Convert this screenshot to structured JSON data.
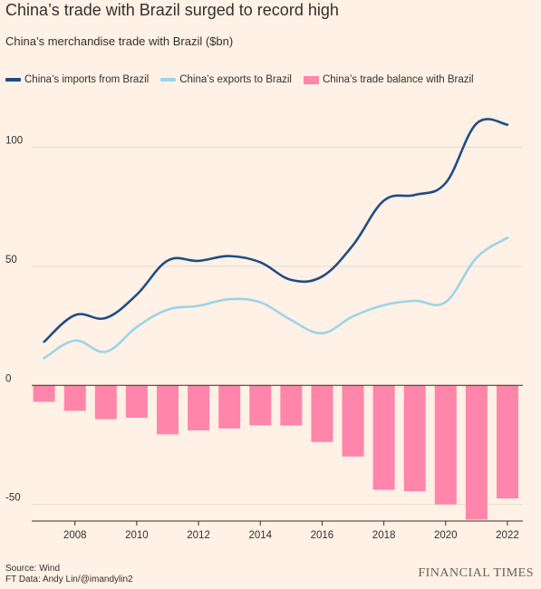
{
  "title": "China’s trade with Brazil surged to record high",
  "subtitle": "China’s merchandise trade with Brazil ($bn)",
  "legend": {
    "imports": "China’s imports from Brazil",
    "exports": "China’s exports to Brazil",
    "balance": "China’s trade balance with Brazil"
  },
  "colors": {
    "background": "#FFF1E5",
    "imports": "#1F4D85",
    "exports": "#9CD4E8",
    "balance": "#FF85AA",
    "grid": "#E6D9CE",
    "axis": "#33302E"
  },
  "footer": {
    "source": "Source: Wind",
    "credit": "FT Data: Andy Lin/@imandylin2"
  },
  "brand": "FINANCIAL TIMES",
  "chart_data": {
    "type": "line+bar",
    "x": [
      2007,
      2008,
      2009,
      2010,
      2011,
      2012,
      2013,
      2014,
      2015,
      2016,
      2017,
      2018,
      2019,
      2020,
      2021,
      2022
    ],
    "series": [
      {
        "name": "China’s imports from Brazil",
        "type": "line",
        "values": [
          18.3,
          29.5,
          28.3,
          38.1,
          52.4,
          52.3,
          54.3,
          51.7,
          44.3,
          45.7,
          58.9,
          77.6,
          80.0,
          85.0,
          110.0,
          109.5
        ]
      },
      {
        "name": "China’s exports to Brazil",
        "type": "line",
        "values": [
          11.4,
          18.8,
          14.1,
          24.5,
          31.8,
          33.4,
          36.2,
          34.9,
          27.4,
          21.9,
          29.0,
          33.7,
          35.5,
          35.0,
          53.6,
          62.0
        ]
      },
      {
        "name": "China’s trade balance with Brazil",
        "type": "bar",
        "values": [
          -6.9,
          -10.7,
          -14.2,
          -13.6,
          -20.6,
          -18.9,
          -18.1,
          -16.8,
          -16.9,
          -23.8,
          -29.9,
          -43.9,
          -44.5,
          -50.0,
          -56.4,
          -47.5
        ]
      }
    ],
    "yticks": [
      -50,
      0,
      50,
      100
    ],
    "xticks": [
      2008,
      2010,
      2012,
      2014,
      2016,
      2018,
      2020,
      2022
    ],
    "ylim": [
      -57,
      120
    ],
    "xlim": [
      2006.6,
      2022.5
    ],
    "grid": true,
    "legend_position": "top-left"
  }
}
